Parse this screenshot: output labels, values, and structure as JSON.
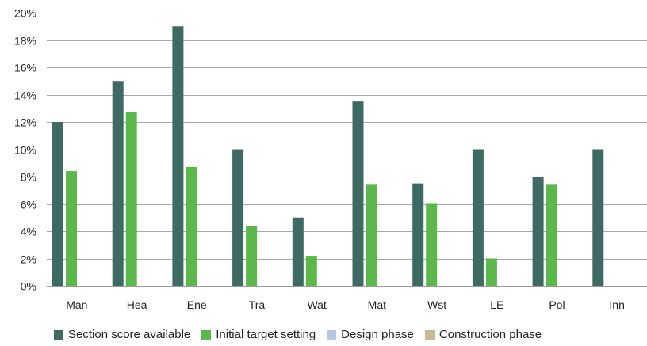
{
  "chart_data": {
    "type": "bar",
    "title": "",
    "xlabel": "",
    "ylabel": "",
    "categories": [
      "Man",
      "Hea",
      "Ene",
      "Tra",
      "Wat",
      "Mat",
      "Wst",
      "LE",
      "Pol",
      "Inn"
    ],
    "ylim": [
      0,
      20
    ],
    "yticks": [
      "0%",
      "2%",
      "4%",
      "6%",
      "8%",
      "10%",
      "12%",
      "14%",
      "16%",
      "18%",
      "20%"
    ],
    "grid": true,
    "legend_position": "bottom",
    "series": [
      {
        "name": "Section score available",
        "color": "#3d6b63",
        "values": [
          12,
          15,
          19,
          10,
          5,
          13.5,
          7.5,
          10,
          8,
          10
        ]
      },
      {
        "name": "Initial target setting",
        "color": "#5cb84a",
        "values": [
          8.4,
          12.7,
          8.7,
          4.4,
          2.2,
          7.4,
          6,
          2,
          7.4,
          0
        ]
      },
      {
        "name": "Design phase",
        "color": "#b4c8e4",
        "values": [
          0,
          0,
          0,
          0,
          0,
          0,
          0,
          0,
          0,
          0
        ]
      },
      {
        "name": "Construction phase",
        "color": "#c8b896",
        "values": [
          0,
          0,
          0,
          0,
          0,
          0,
          0,
          0,
          0,
          0
        ]
      }
    ]
  }
}
